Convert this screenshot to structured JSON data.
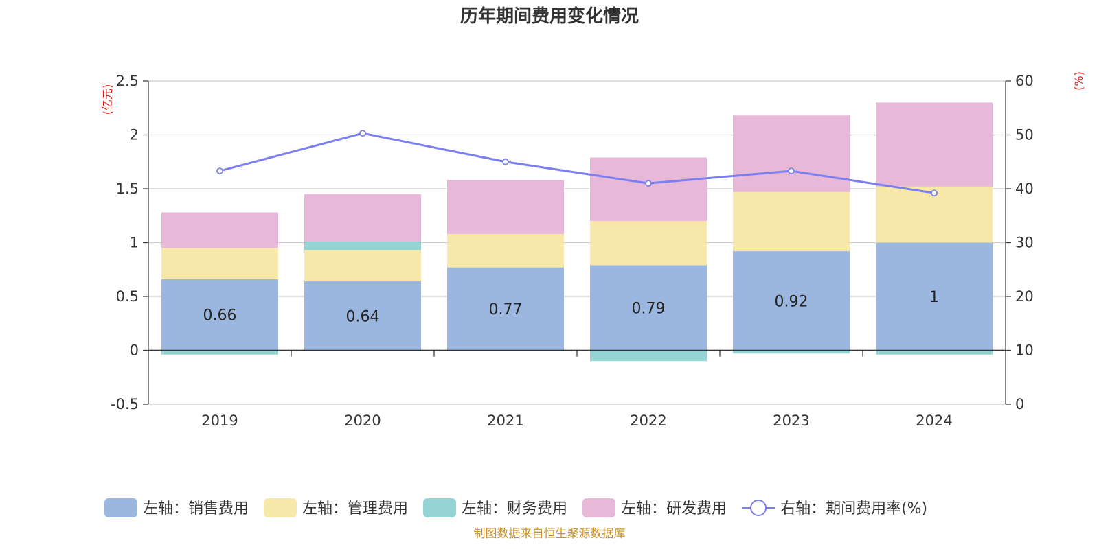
{
  "chart_data": {
    "type": "bar",
    "title": "历年期间费用变化情况",
    "categories": [
      "2019",
      "2020",
      "2021",
      "2022",
      "2023",
      "2024"
    ],
    "left_axis": {
      "unit": "(亿元)",
      "ylim": [
        -0.5,
        2.5
      ],
      "ticks": [
        "-0.5",
        "0",
        "0.5",
        "1",
        "1.5",
        "2",
        "2.5"
      ]
    },
    "right_axis": {
      "unit": "(%)",
      "ylim": [
        0,
        60
      ],
      "ticks": [
        "0",
        "10",
        "20",
        "30",
        "40",
        "50",
        "60"
      ]
    },
    "stacked": true,
    "series": [
      {
        "name": "左轴：销售费用",
        "axis": "left",
        "type": "bar",
        "color": "#9bb7e0",
        "values": [
          0.66,
          0.64,
          0.77,
          0.79,
          0.92,
          1.0
        ],
        "labels": [
          "0.66",
          "0.64",
          "0.77",
          "0.79",
          "0.92",
          "1"
        ]
      },
      {
        "name": "左轴：管理费用",
        "axis": "left",
        "type": "bar",
        "color": "#f7e7a8",
        "values": [
          0.29,
          0.29,
          0.31,
          0.41,
          0.55,
          0.52
        ]
      },
      {
        "name": "左轴：财务费用",
        "axis": "left",
        "type": "bar",
        "color": "#96d4d4",
        "values": [
          -0.04,
          0.08,
          0.0,
          -0.1,
          -0.03,
          -0.04
        ]
      },
      {
        "name": "左轴：研发费用",
        "axis": "left",
        "type": "bar",
        "color": "#e8b8d8",
        "values": [
          0.33,
          0.44,
          0.5,
          0.59,
          0.71,
          0.78
        ]
      },
      {
        "name": "右轴：期间费用率(%)",
        "axis": "right",
        "type": "line",
        "color": "#7b7fef",
        "values": [
          43.3,
          50.3,
          45.0,
          41.0,
          43.3,
          39.2
        ]
      }
    ],
    "legend_position": "bottom",
    "grid": true
  },
  "source_text": "制图数据来自恒生聚源数据库"
}
